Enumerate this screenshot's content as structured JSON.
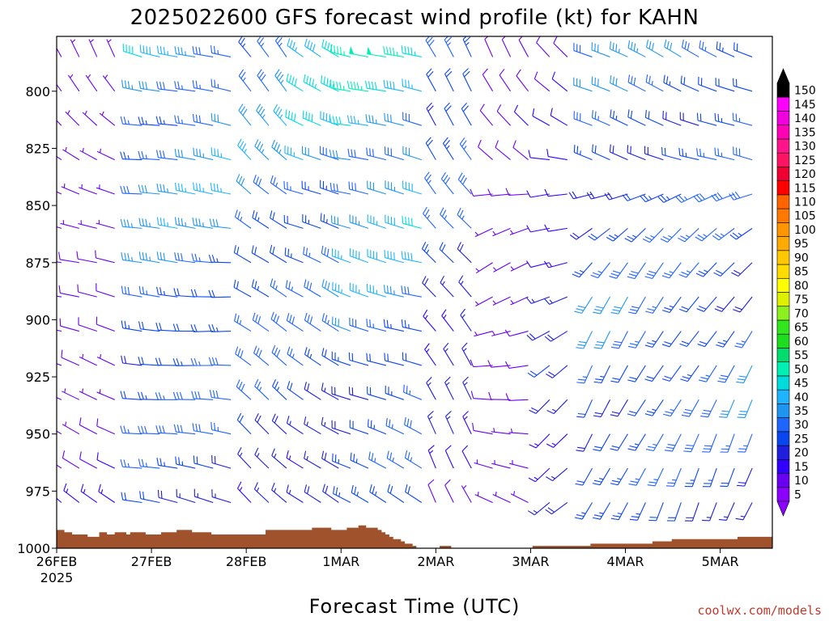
{
  "title": "2025022600 GFS forecast wind profile (kt) for KAHN",
  "credit": "coolwx.com/models",
  "chart_data": {
    "type": "wind_barb_time_height",
    "xlabel": "Forecast Time (UTC)",
    "x_ticks": [
      "26FEB",
      "27FEB",
      "28FEB",
      "1MAR",
      "2MAR",
      "3MAR",
      "4MAR",
      "5MAR"
    ],
    "x_tick_sub": "2025",
    "y_ticks": [
      800,
      825,
      850,
      875,
      900,
      925,
      950,
      975,
      1000
    ],
    "ylim_hpa": [
      1000,
      776
    ],
    "xlim_days": [
      0,
      7.55
    ],
    "levels_hpa": [
      785,
      800,
      815,
      830,
      845,
      860,
      875,
      890,
      905,
      920,
      935,
      950,
      965,
      980
    ],
    "speed_colorbar_kt": [
      5,
      10,
      15,
      20,
      25,
      30,
      35,
      40,
      45,
      50,
      55,
      60,
      65,
      70,
      75,
      80,
      85,
      90,
      95,
      100,
      105,
      110,
      115,
      120,
      125,
      130,
      135,
      140,
      145,
      150
    ],
    "colorbar_colors": [
      "#8c00ff",
      "#6a00f0",
      "#3200ff",
      "#1e1edc",
      "#0a46f0",
      "#1e64ff",
      "#1e96f0",
      "#1eb4ff",
      "#00dcdc",
      "#00f0b4",
      "#00dc6e",
      "#1edc1e",
      "#32e61e",
      "#8cf01e",
      "#dcf000",
      "#ffff00",
      "#ffdc00",
      "#ffc800",
      "#ffaa00",
      "#ff9600",
      "#ff7800",
      "#ff6400",
      "#ff0000",
      "#f00032",
      "#ff1464",
      "#ff148c",
      "#ff00b4",
      "#f000dc",
      "#ff00ff",
      "#000000"
    ],
    "surface_pressure_hpa": [
      992,
      992,
      993,
      993,
      994,
      994,
      994,
      994,
      995,
      995,
      995,
      993,
      993,
      994,
      994,
      993,
      993,
      993,
      994,
      993,
      993,
      993,
      993,
      994,
      994,
      994,
      994,
      993,
      993,
      993,
      993,
      992,
      992,
      992,
      992,
      993,
      993,
      993,
      993,
      993,
      994,
      994,
      994,
      994,
      994,
      994,
      994,
      994,
      994,
      994,
      994,
      994,
      994,
      994,
      992,
      992,
      992,
      992,
      992,
      992,
      992,
      992,
      992,
      992,
      992,
      992,
      991,
      991,
      991,
      991,
      991,
      992,
      992,
      992,
      992,
      991,
      991,
      991,
      990,
      990,
      991,
      991,
      991,
      992,
      993,
      994,
      995,
      996,
      996,
      997,
      998,
      998,
      999,
      1000,
      1000,
      1000,
      1000,
      1000,
      1000,
      999,
      999,
      999,
      1000,
      1000,
      1000,
      1000,
      1000,
      1000,
      1000,
      1000,
      1000,
      1000,
      1000,
      1000,
      1000,
      1000,
      1000,
      1000,
      1000,
      1000,
      1000,
      1000,
      1000,
      999,
      999,
      999,
      999,
      999,
      999,
      999,
      999,
      999,
      999,
      999,
      999,
      999,
      999,
      999,
      998,
      998,
      998,
      998,
      998,
      998,
      998,
      998,
      998,
      998,
      998,
      998,
      998,
      998,
      998,
      998,
      997,
      997,
      997,
      997,
      997,
      996,
      996,
      996,
      996,
      996,
      996,
      996,
      996,
      996,
      996,
      996,
      996,
      996,
      996,
      996,
      996,
      996,
      995,
      995,
      995,
      995,
      995,
      995,
      995,
      995,
      995
    ],
    "wind_segments": [
      {
        "x0": 0.05,
        "x1": 0.78,
        "dir": [
          330,
          320,
          310,
          300,
          295,
          290,
          285,
          285,
          285,
          290,
          290,
          295,
          300,
          310
        ],
        "speed": [
          6,
          6,
          7,
          8,
          8,
          8,
          8,
          9,
          9,
          9,
          10,
          10,
          10,
          12
        ]
      },
      {
        "x0": 0.9,
        "x1": 2.0,
        "dir": [
          285,
          283,
          280,
          278,
          276,
          275,
          274,
          274,
          274,
          275,
          276,
          278,
          280,
          282
        ],
        "speed": [
          38,
          37,
          35,
          34,
          33,
          32,
          31,
          30,
          29,
          28,
          27,
          26,
          24,
          22
        ]
      },
      {
        "x0": 2.05,
        "x1": 2.55,
        "dir": [
          320,
          318,
          315,
          312,
          310,
          308,
          306,
          305,
          305,
          306,
          308,
          310,
          312,
          315
        ],
        "speed": [
          35,
          34,
          33,
          32,
          31,
          30,
          30,
          29,
          28,
          27,
          26,
          24,
          22,
          20
        ]
      },
      {
        "x0": 2.6,
        "x1": 3.05,
        "dir": [
          300,
          298,
          296,
          294,
          292,
          292,
          294,
          296,
          298,
          300,
          302,
          304,
          306,
          308
        ],
        "speed": [
          42,
          40,
          38,
          36,
          34,
          32,
          30,
          28,
          26,
          25,
          24,
          22,
          20,
          18
        ]
      },
      {
        "x0": 3.1,
        "x1": 3.9,
        "dir": [
          285,
          284,
          283,
          282,
          282,
          283,
          284,
          286,
          288,
          290,
          292,
          294,
          296,
          298
        ],
        "speed": [
          44,
          43,
          42,
          41,
          40,
          38,
          36,
          34,
          32,
          30,
          28,
          26,
          24,
          22
        ]
      },
      {
        "x0": 4.0,
        "x1": 4.55,
        "dir": [
          330,
          328,
          326,
          324,
          322,
          320,
          320,
          322,
          324,
          326,
          328,
          330,
          332,
          334
        ],
        "speed": [
          30,
          29,
          28,
          27,
          26,
          25,
          24,
          22,
          20,
          18,
          16,
          14,
          12,
          10
        ]
      },
      {
        "x0": 4.6,
        "x1": 5.1,
        "dir": [
          330,
          325,
          320,
          315,
          270,
          250,
          240,
          240,
          250,
          260,
          270,
          280,
          290,
          300
        ],
        "speed": [
          12,
          11,
          10,
          9,
          8,
          8,
          8,
          8,
          8,
          8,
          8,
          8,
          8,
          8
        ]
      },
      {
        "x0": 5.2,
        "x1": 5.5,
        "dir": [
          320,
          315,
          305,
          280,
          260,
          255,
          250,
          245,
          240,
          235,
          230,
          230,
          230,
          230
        ],
        "speed": [
          10,
          10,
          10,
          12,
          14,
          15,
          16,
          17,
          18,
          19,
          20,
          20,
          20,
          20
        ]
      },
      {
        "x0": 5.65,
        "x1": 7.5,
        "dir": [
          295,
          292,
          290,
          288,
          250,
          230,
          220,
          215,
          212,
          210,
          208,
          206,
          205,
          205
        ],
        "speed": [
          30,
          29,
          28,
          27,
          26,
          25,
          26,
          28,
          30,
          30,
          28,
          26,
          24,
          22
        ]
      }
    ]
  }
}
